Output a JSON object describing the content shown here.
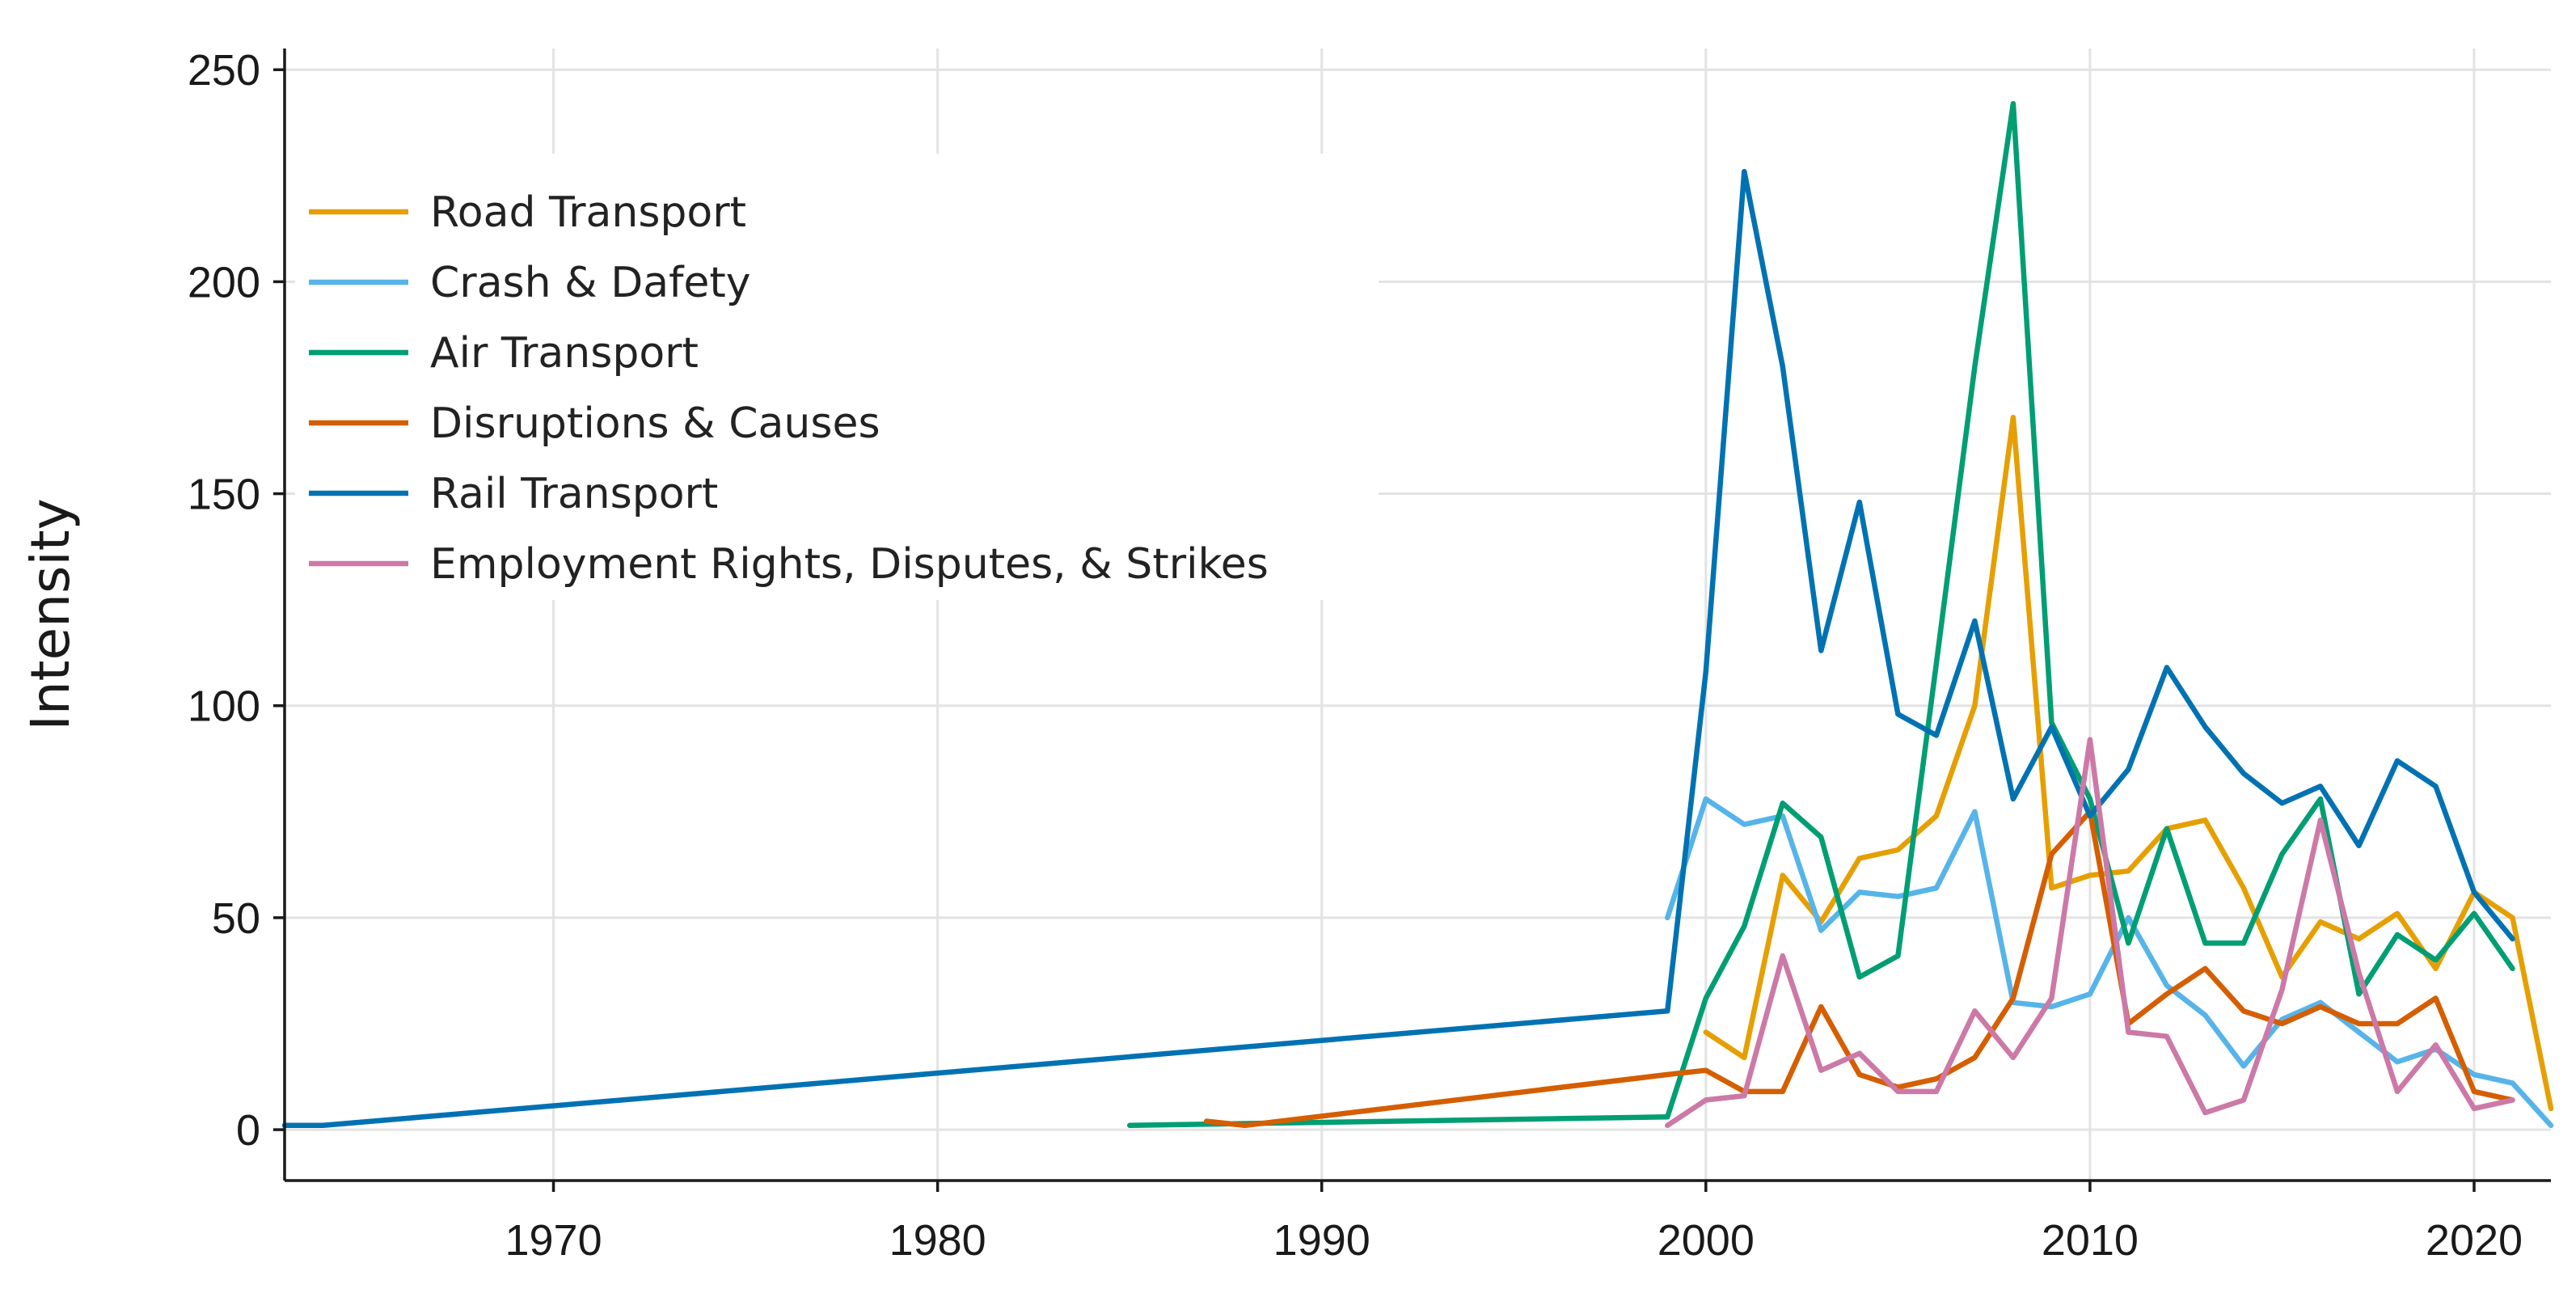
{
  "chart_data": {
    "type": "line",
    "title": "",
    "xlabel": "",
    "ylabel": "Intensity",
    "xlim": [
      1963,
      2022
    ],
    "ylim": [
      -12,
      255
    ],
    "xticks": [
      1970,
      1980,
      1990,
      2000,
      2010,
      2020
    ],
    "yticks": [
      0,
      50,
      100,
      150,
      200,
      250
    ],
    "grid": true,
    "legend_position": "upper-left",
    "series": [
      {
        "name": "Road Transport",
        "color": "#E69F00",
        "x": [
          2000,
          2001,
          2002,
          2003,
          2004,
          2005,
          2006,
          2007,
          2008,
          2009,
          2010,
          2011,
          2012,
          2013,
          2014,
          2015,
          2016,
          2017,
          2018,
          2019,
          2020,
          2021,
          2022
        ],
        "y": [
          23,
          17,
          60,
          49,
          64,
          66,
          74,
          100,
          168,
          57,
          60,
          61,
          71,
          73,
          57,
          36,
          49,
          45,
          51,
          38,
          56,
          50,
          5
        ]
      },
      {
        "name": "Crash & Dafety",
        "color": "#56B4E9",
        "x": [
          1999,
          2000,
          2001,
          2002,
          2003,
          2004,
          2005,
          2006,
          2007,
          2008,
          2009,
          2010,
          2011,
          2012,
          2013,
          2014,
          2015,
          2016,
          2017,
          2018,
          2019,
          2020,
          2021,
          2022
        ],
        "y": [
          50,
          78,
          72,
          74,
          47,
          56,
          55,
          57,
          75,
          30,
          29,
          32,
          50,
          34,
          27,
          15,
          26,
          30,
          23,
          16,
          19,
          13,
          11,
          1
        ]
      },
      {
        "name": "Air Transport",
        "color": "#009E73",
        "x": [
          1985,
          1999,
          2000,
          2001,
          2002,
          2003,
          2004,
          2005,
          2006,
          2007,
          2008,
          2009,
          2010,
          2011,
          2012,
          2013,
          2014,
          2015,
          2016,
          2017,
          2018,
          2019,
          2020,
          2021
        ],
        "y": [
          1,
          3,
          31,
          48,
          77,
          69,
          36,
          41,
          110,
          180,
          242,
          96,
          78,
          44,
          71,
          44,
          44,
          65,
          78,
          32,
          46,
          40,
          51,
          38
        ]
      },
      {
        "name": "Disruptions & Causes",
        "color": "#D55E00",
        "x": [
          1987,
          1988,
          1999,
          2000,
          2001,
          2002,
          2003,
          2004,
          2005,
          2006,
          2007,
          2008,
          2009,
          2010,
          2011,
          2012,
          2013,
          2014,
          2015,
          2016,
          2017,
          2018,
          2019,
          2020,
          2021
        ],
        "y": [
          2,
          1,
          13,
          14,
          9,
          9,
          29,
          13,
          10,
          12,
          17,
          31,
          65,
          75,
          25,
          32,
          38,
          28,
          25,
          29,
          25,
          25,
          31,
          9,
          7
        ]
      },
      {
        "name": "Rail Transport",
        "color": "#0072B2",
        "x": [
          1963,
          1964,
          1999,
          2000,
          2001,
          2002,
          2003,
          2004,
          2005,
          2006,
          2007,
          2008,
          2009,
          2010,
          2011,
          2012,
          2013,
          2014,
          2015,
          2016,
          2017,
          2018,
          2019,
          2020,
          2021
        ],
        "y": [
          1,
          1,
          28,
          108,
          226,
          180,
          113,
          148,
          98,
          93,
          120,
          78,
          95,
          74,
          85,
          109,
          95,
          84,
          77,
          81,
          67,
          87,
          81,
          56,
          45
        ]
      },
      {
        "name": "Employment Rights, Disputes, & Strikes",
        "color": "#CC79A7",
        "x": [
          1999,
          2000,
          2001,
          2002,
          2003,
          2004,
          2005,
          2006,
          2007,
          2008,
          2009,
          2010,
          2011,
          2012,
          2013,
          2014,
          2015,
          2016,
          2017,
          2018,
          2019,
          2020,
          2021
        ],
        "y": [
          1,
          7,
          8,
          41,
          14,
          18,
          9,
          9,
          28,
          17,
          31,
          92,
          23,
          22,
          4,
          7,
          33,
          73,
          37,
          9,
          20,
          5,
          7
        ]
      }
    ]
  }
}
